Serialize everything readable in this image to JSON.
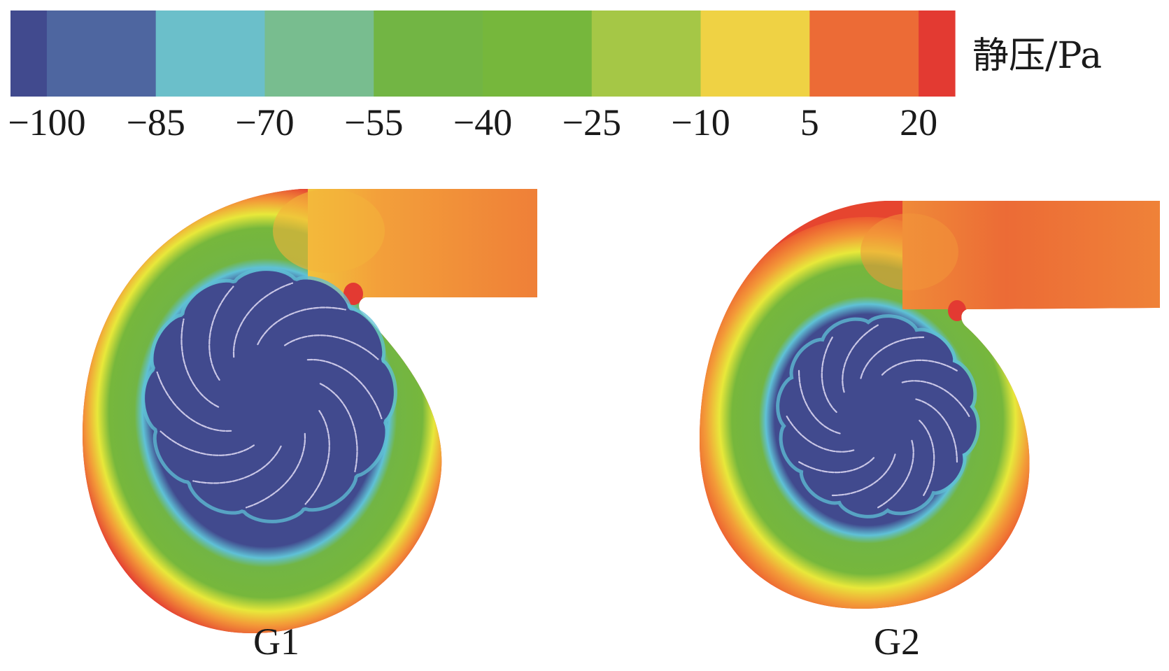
{
  "colorbar": {
    "title": "静压/Pa",
    "quantity": "static pressure",
    "unit": "Pa",
    "band_colors": [
      "#414a8e",
      "#4e66a0",
      "#6bbfca",
      "#78bd8f",
      "#72b544",
      "#76b73c",
      "#a5c746",
      "#efd244",
      "#ec6b36",
      "#e33a32"
    ],
    "tick_values": [
      -100,
      -85,
      -70,
      -55,
      -40,
      -25,
      -10,
      5,
      20
    ],
    "tick_labels": [
      "−100",
      "−85",
      "−70",
      "−55",
      "−40",
      "−25",
      "−10",
      "5",
      "20"
    ],
    "range": [
      -105,
      25
    ]
  },
  "panels": [
    {
      "id": "G1",
      "label": "G1",
      "description": "Static pressure contour of centrifugal fan volute with impeller (case G1)",
      "blade_count": 12,
      "impeller_region_pressure": "≤ −100 Pa",
      "volute_wall_pressure": "≈ 20 Pa",
      "outlet_pressure": "≈ 5 Pa"
    },
    {
      "id": "G2",
      "label": "G2",
      "description": "Static pressure contour of centrifugal fan volute with impeller (case G2)",
      "blade_count": 12,
      "impeller_region_pressure": "≤ −100 Pa",
      "volute_wall_pressure": "≈ 5–20 Pa",
      "outlet_pressure": "≈ 5 Pa"
    }
  ],
  "chart_data": {
    "type": "heatmap",
    "title": "",
    "colorbar_label": "静压/Pa",
    "colorbar_ticks": [
      -100,
      -85,
      -70,
      -55,
      -40,
      -25,
      -10,
      5,
      20
    ],
    "value_range": [
      -105,
      25
    ],
    "series": [
      {
        "name": "G1",
        "zones": [
          {
            "region": "impeller core",
            "value": -100
          },
          {
            "region": "impeller rim",
            "value": -70
          },
          {
            "region": "inner volute ring",
            "value": -40
          },
          {
            "region": "mid volute ring",
            "value": -10
          },
          {
            "region": "outer volute wall",
            "value": 20
          },
          {
            "region": "outlet duct",
            "value": 5
          },
          {
            "region": "volute tongue",
            "value": 20
          }
        ]
      },
      {
        "name": "G2",
        "zones": [
          {
            "region": "impeller core",
            "value": -100
          },
          {
            "region": "impeller rim",
            "value": -70
          },
          {
            "region": "inner volute ring",
            "value": -40
          },
          {
            "region": "mid volute ring",
            "value": -10
          },
          {
            "region": "outer volute wall",
            "value": 12
          },
          {
            "region": "outlet duct",
            "value": 5
          },
          {
            "region": "volute tongue",
            "value": 20
          }
        ]
      }
    ]
  }
}
